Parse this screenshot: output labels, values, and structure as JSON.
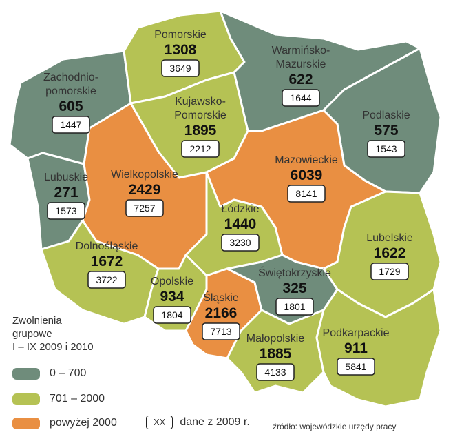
{
  "colors": {
    "low": "#6f8c7b",
    "mid": "#b5c254",
    "high": "#e98f42"
  },
  "regions": [
    {
      "name": "Zachodnio-",
      "name2": "pomorskie",
      "value": "605",
      "prev": "1447",
      "cat": "low"
    },
    {
      "name": "Pomorskie",
      "name2": "",
      "value": "1308",
      "prev": "3649",
      "cat": "mid"
    },
    {
      "name": "Warmińsko-",
      "name2": "Mazurskie",
      "value": "622",
      "prev": "1644",
      "cat": "low"
    },
    {
      "name": "Podlaskie",
      "name2": "",
      "value": "575",
      "prev": "1543",
      "cat": "low"
    },
    {
      "name": "Kujawsko-",
      "name2": "Pomorskie",
      "value": "1895",
      "prev": "2212",
      "cat": "mid"
    },
    {
      "name": "Lubuskie",
      "name2": "",
      "value": "271",
      "prev": "1573",
      "cat": "low"
    },
    {
      "name": "Wielkopolskie",
      "name2": "",
      "value": "2429",
      "prev": "7257",
      "cat": "high"
    },
    {
      "name": "Mazowieckie",
      "name2": "",
      "value": "6039",
      "prev": "8141",
      "cat": "high"
    },
    {
      "name": "Łódzkie",
      "name2": "",
      "value": "1440",
      "prev": "3230",
      "cat": "mid"
    },
    {
      "name": "Dolnośląskie",
      "name2": "",
      "value": "1672",
      "prev": "3722",
      "cat": "mid"
    },
    {
      "name": "Lubelskie",
      "name2": "",
      "value": "1622",
      "prev": "1729",
      "cat": "mid"
    },
    {
      "name": "Opolskie",
      "name2": "",
      "value": "934",
      "prev": "1804",
      "cat": "mid"
    },
    {
      "name": "Śląskie",
      "name2": "",
      "value": "2166",
      "prev": "7713",
      "cat": "high"
    },
    {
      "name": "Świętokrzyskie",
      "name2": "",
      "value": "325",
      "prev": "1801",
      "cat": "low"
    },
    {
      "name": "Małopolskie",
      "name2": "",
      "value": "1885",
      "prev": "4133",
      "cat": "mid"
    },
    {
      "name": "Podkarpackie",
      "name2": "",
      "value": "911",
      "prev": "5841",
      "cat": "mid"
    }
  ],
  "legend": {
    "title1": "Zwolnienia",
    "title2": "grupowe",
    "title3": "I – IX 2009 i 2010",
    "low": "0 – 700",
    "mid": "701  –  2000",
    "high": "powyżej 2000",
    "xx": "XX",
    "xx_label": "dane z 2009 r."
  },
  "source": "źródło: wojewódzkie urzędy pracy"
}
